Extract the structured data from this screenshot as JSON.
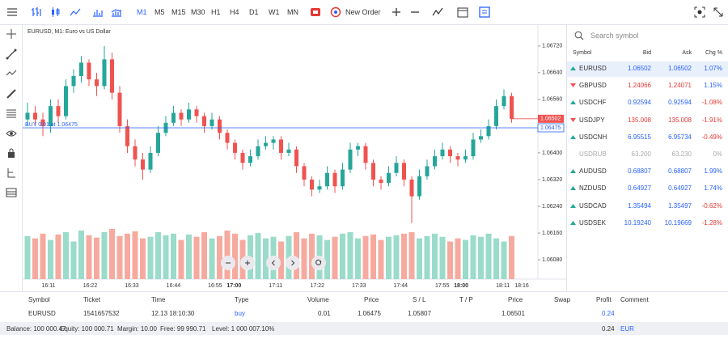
{
  "toolbar": {
    "timeframes": [
      "M1",
      "M5",
      "M15",
      "M30",
      "H1",
      "H4",
      "D1",
      "W1",
      "MN"
    ],
    "active_timeframe": "M1",
    "new_order": "New Order"
  },
  "chart": {
    "type": "candlestick",
    "title": "EURUSD, M1: Euro vs US Dollar",
    "order_line": {
      "label": "BUY 0.01 at 1.06475",
      "price": 1.06475
    },
    "current_price": 1.06502,
    "ylim": [
      1.06022,
      1.06785
    ],
    "yticks": [
      {
        "value": 1.0672,
        "label": "1.06720"
      },
      {
        "value": 1.0664,
        "label": "1.06640"
      },
      {
        "value": 1.0656,
        "label": "1.06560"
      },
      {
        "value": 1.064,
        "label": "1.06400"
      },
      {
        "value": 1.0632,
        "label": "1.06320"
      },
      {
        "value": 1.0624,
        "label": "1.06240"
      },
      {
        "value": 1.0616,
        "label": "1.06160"
      },
      {
        "value": 1.0608,
        "label": "1.06080"
      }
    ],
    "xticks": [
      {
        "label": "16:11"
      },
      {
        "label": "16:22"
      },
      {
        "label": "16:33"
      },
      {
        "label": "16:44"
      },
      {
        "label": "16:55"
      },
      {
        "label": "17:00",
        "bold": true
      },
      {
        "label": "17:11"
      },
      {
        "label": "17:22"
      },
      {
        "label": "17:33"
      },
      {
        "label": "17:44"
      },
      {
        "label": "17:55"
      },
      {
        "label": "18:00",
        "bold": true
      },
      {
        "label": "18:11"
      },
      {
        "label": "18:16"
      }
    ],
    "candles": [
      [
        1.065,
        1.0655,
        1.0648,
        1.0652
      ],
      [
        1.0652,
        1.0654,
        1.0648,
        1.065
      ],
      [
        1.065,
        1.0652,
        1.0645,
        1.0648
      ],
      [
        1.0648,
        1.0656,
        1.0646,
        1.0654
      ],
      [
        1.0654,
        1.0656,
        1.0649,
        1.0651
      ],
      [
        1.0651,
        1.0662,
        1.065,
        1.066
      ],
      [
        1.066,
        1.0665,
        1.0658,
        1.0663
      ],
      [
        1.0663,
        1.0669,
        1.0661,
        1.0667
      ],
      [
        1.0667,
        1.0668,
        1.066,
        1.0662
      ],
      [
        1.0662,
        1.0664,
        1.0657,
        1.066
      ],
      [
        1.066,
        1.0672,
        1.0659,
        1.0668
      ],
      [
        1.0668,
        1.067,
        1.0656,
        1.0658
      ],
      [
        1.0658,
        1.066,
        1.0646,
        1.0648
      ],
      [
        1.0648,
        1.065,
        1.064,
        1.0642
      ],
      [
        1.0642,
        1.0644,
        1.0636,
        1.0638
      ],
      [
        1.0638,
        1.064,
        1.0632,
        1.0635
      ],
      [
        1.0635,
        1.0642,
        1.0634,
        1.064
      ],
      [
        1.064,
        1.0648,
        1.0639,
        1.0646
      ],
      [
        1.0646,
        1.0651,
        1.0645,
        1.0649
      ],
      [
        1.0649,
        1.0654,
        1.0648,
        1.0652
      ],
      [
        1.0652,
        1.0653,
        1.0648,
        1.065
      ],
      [
        1.065,
        1.0655,
        1.0649,
        1.0653
      ],
      [
        1.0653,
        1.0654,
        1.0649,
        1.0651
      ],
      [
        1.0651,
        1.0652,
        1.0646,
        1.0648
      ],
      [
        1.0648,
        1.0652,
        1.0647,
        1.065
      ],
      [
        1.065,
        1.0651,
        1.0644,
        1.0646
      ],
      [
        1.0646,
        1.0647,
        1.0641,
        1.0643
      ],
      [
        1.0643,
        1.0644,
        1.0638,
        1.064
      ],
      [
        1.064,
        1.0641,
        1.0635,
        1.0637
      ],
      [
        1.0637,
        1.0641,
        1.0636,
        1.0639
      ],
      [
        1.0639,
        1.0644,
        1.0638,
        1.0642
      ],
      [
        1.0642,
        1.0645,
        1.0641,
        1.0643
      ],
      [
        1.0643,
        1.0645,
        1.0641,
        1.0644
      ],
      [
        1.0644,
        1.0645,
        1.0638,
        1.064
      ],
      [
        1.064,
        1.0643,
        1.0639,
        1.0641
      ],
      [
        1.0641,
        1.0642,
        1.0634,
        1.0636
      ],
      [
        1.0636,
        1.0637,
        1.063,
        1.0632
      ],
      [
        1.0632,
        1.0633,
        1.0627,
        1.0629
      ],
      [
        1.0629,
        1.0632,
        1.0628,
        1.063
      ],
      [
        1.063,
        1.0636,
        1.0629,
        1.0634
      ],
      [
        1.0634,
        1.0635,
        1.0628,
        1.063
      ],
      [
        1.063,
        1.0637,
        1.0629,
        1.0635
      ],
      [
        1.0635,
        1.0643,
        1.0634,
        1.0641
      ],
      [
        1.0641,
        1.0643,
        1.0639,
        1.0642
      ],
      [
        1.0642,
        1.0643,
        1.0635,
        1.0637
      ],
      [
        1.0637,
        1.0638,
        1.063,
        1.0632
      ],
      [
        1.0632,
        1.0633,
        1.0629,
        1.0631
      ],
      [
        1.0631,
        1.0636,
        1.063,
        1.0634
      ],
      [
        1.0634,
        1.0639,
        1.0633,
        1.0637
      ],
      [
        1.0637,
        1.0638,
        1.063,
        1.0632
      ],
      [
        1.0632,
        1.0633,
        1.0619,
        1.0627
      ],
      [
        1.0627,
        1.0635,
        1.0626,
        1.0633
      ],
      [
        1.0633,
        1.0638,
        1.0632,
        1.0636
      ],
      [
        1.0636,
        1.0641,
        1.0635,
        1.0639
      ],
      [
        1.0639,
        1.0643,
        1.0638,
        1.0641
      ],
      [
        1.0641,
        1.0642,
        1.0637,
        1.0639
      ],
      [
        1.0639,
        1.064,
        1.0636,
        1.0638
      ],
      [
        1.0638,
        1.0641,
        1.0637,
        1.0639
      ],
      [
        1.0639,
        1.0646,
        1.0638,
        1.0644
      ],
      [
        1.0644,
        1.0647,
        1.0643,
        1.0645
      ],
      [
        1.0645,
        1.065,
        1.0644,
        1.0648
      ],
      [
        1.0648,
        1.0656,
        1.0647,
        1.0654
      ],
      [
        1.0654,
        1.0659,
        1.0653,
        1.0657
      ],
      [
        1.0657,
        1.0658,
        1.0649,
        1.06502
      ]
    ],
    "volumes": [
      55,
      52,
      58,
      50,
      57,
      60,
      48,
      62,
      56,
      53,
      60,
      64,
      55,
      58,
      61,
      52,
      54,
      60,
      56,
      58,
      50,
      57,
      54,
      60,
      52,
      55,
      62,
      58,
      50,
      56,
      59,
      52,
      54,
      48,
      55,
      60,
      52,
      58,
      56,
      50,
      54,
      58,
      60,
      52,
      55,
      57,
      50,
      54,
      56,
      58,
      60,
      52,
      55,
      58,
      54,
      48,
      52,
      50,
      56,
      54,
      58,
      52,
      48,
      55
    ]
  },
  "watchlist": {
    "search_placeholder": "Search symbol",
    "headers": [
      "Symbol",
      "Bid",
      "Ask",
      "Chg %"
    ],
    "rows": [
      {
        "symbol": "EURUSD",
        "bid": "1.06502",
        "ask": "1.06502",
        "chg": "1.07%",
        "direction": "up",
        "selected": true
      },
      {
        "symbol": "GBPUSD",
        "bid": "1.24066",
        "ask": "1.24071",
        "chg": "1.15%",
        "direction": "down"
      },
      {
        "symbol": "USDCHF",
        "bid": "0.92594",
        "ask": "0.92594",
        "chg": "-1.08%",
        "direction": "up"
      },
      {
        "symbol": "USDJPY",
        "bid": "135.008",
        "ask": "135.008",
        "chg": "-1.91%",
        "direction": "down"
      },
      {
        "symbol": "USDCNH",
        "bid": "6.95515",
        "ask": "6.95734",
        "chg": "-0.49%",
        "direction": "up"
      },
      {
        "symbol": "USDRUB",
        "bid": "63.200",
        "ask": "63.230",
        "chg": "0%",
        "direction": "none"
      },
      {
        "symbol": "AUDUSD",
        "bid": "0.68807",
        "ask": "0.68807",
        "chg": "1.99%",
        "direction": "up"
      },
      {
        "symbol": "NZDUSD",
        "bid": "0.64927",
        "ask": "0.64927",
        "chg": "1.74%",
        "direction": "up"
      },
      {
        "symbol": "USDCAD",
        "bid": "1.35494",
        "ask": "1.35497",
        "chg": "-0.62%",
        "direction": "up"
      },
      {
        "symbol": "USDSEK",
        "bid": "10.19240",
        "ask": "10.19669",
        "chg": "-1.28%",
        "direction": "up"
      }
    ]
  },
  "positions": {
    "headers": [
      "Symbol",
      "Ticket",
      "Time",
      "Type",
      "Volume",
      "Price",
      "S / L",
      "T / P",
      "Price",
      "Swap",
      "Profit",
      "Comment"
    ],
    "row": {
      "symbol": "EURUSD",
      "ticket": "1541657532",
      "time": "12.13 18:10:30",
      "type": "buy",
      "volume": "0.01",
      "price": "1.06475",
      "sl": "1.05807",
      "current_price": "1.06501",
      "profit": "0.24"
    },
    "footer": {
      "balance": "Balance: 100 000.47",
      "equity": "Equity: 100 000.71",
      "margin": "Margin: 10.00",
      "free": "Free: 99 990.71",
      "level": "Level: 1 000 007.10%",
      "profit": "0.24",
      "currency": "EUR"
    }
  }
}
